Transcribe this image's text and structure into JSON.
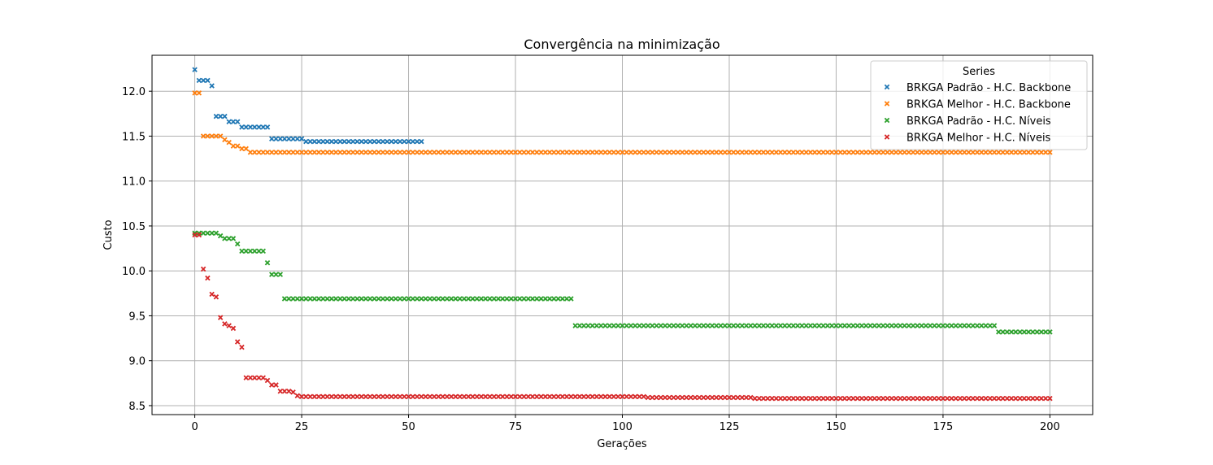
{
  "chart_data": {
    "type": "scatter",
    "title": "Convergência na minimização",
    "xlabel": "Gerações",
    "ylabel": "Custo",
    "xlim": [
      -10,
      210
    ],
    "ylim": [
      8.4,
      12.4
    ],
    "xticks": [
      0,
      25,
      50,
      75,
      100,
      125,
      150,
      175,
      200
    ],
    "yticks": [
      8.5,
      9.0,
      9.5,
      10.0,
      10.5,
      11.0,
      11.5,
      12.0
    ],
    "grid": true,
    "marker": "x",
    "legend": {
      "title": "Series",
      "position": "top-right"
    },
    "series": [
      {
        "name": "BRKGA Padrão - H.C. Backbone",
        "color": "#1f77b4",
        "segments": [
          [
            0,
            0,
            12.24
          ],
          [
            1,
            3,
            12.12
          ],
          [
            4,
            4,
            12.06
          ],
          [
            5,
            7,
            11.72
          ],
          [
            8,
            10,
            11.66
          ],
          [
            11,
            17,
            11.6
          ],
          [
            18,
            25,
            11.47
          ],
          [
            26,
            53,
            11.44
          ]
        ]
      },
      {
        "name": "BRKGA Melhor - H.C. Backbone",
        "color": "#ff7f0e",
        "segments": [
          [
            0,
            1,
            11.98
          ],
          [
            2,
            6,
            11.5
          ],
          [
            7,
            7,
            11.46
          ],
          [
            8,
            8,
            11.43
          ],
          [
            9,
            10,
            11.39
          ],
          [
            11,
            12,
            11.36
          ],
          [
            13,
            200,
            11.32
          ]
        ]
      },
      {
        "name": "BRKGA Padrão - H.C. Níveis",
        "color": "#2ca02c",
        "segments": [
          [
            0,
            5,
            10.42
          ],
          [
            6,
            6,
            10.39
          ],
          [
            7,
            9,
            10.36
          ],
          [
            10,
            10,
            10.3
          ],
          [
            11,
            16,
            10.22
          ],
          [
            17,
            17,
            10.09
          ],
          [
            18,
            20,
            9.96
          ],
          [
            21,
            88,
            9.69
          ],
          [
            89,
            187,
            9.39
          ],
          [
            188,
            200,
            9.32
          ]
        ]
      },
      {
        "name": "BRKGA Melhor - H.C. Níveis",
        "color": "#d62728",
        "points": [
          [
            0,
            10.4
          ],
          [
            1,
            10.4
          ],
          [
            2,
            10.02
          ],
          [
            3,
            9.92
          ],
          [
            4,
            9.74
          ],
          [
            5,
            9.71
          ],
          [
            6,
            9.48
          ],
          [
            7,
            9.41
          ],
          [
            8,
            9.39
          ],
          [
            9,
            9.36
          ],
          [
            10,
            9.21
          ],
          [
            11,
            9.15
          ],
          [
            12,
            8.81
          ],
          [
            13,
            8.81
          ],
          [
            14,
            8.81
          ],
          [
            15,
            8.81
          ],
          [
            16,
            8.81
          ],
          [
            17,
            8.78
          ],
          [
            18,
            8.73
          ],
          [
            19,
            8.73
          ],
          [
            20,
            8.66
          ],
          [
            21,
            8.66
          ],
          [
            22,
            8.66
          ],
          [
            23,
            8.65
          ],
          [
            24,
            8.61
          ]
        ],
        "segments": [
          [
            25,
            105,
            8.6
          ],
          [
            106,
            130,
            8.59
          ],
          [
            131,
            200,
            8.58
          ]
        ]
      }
    ]
  }
}
